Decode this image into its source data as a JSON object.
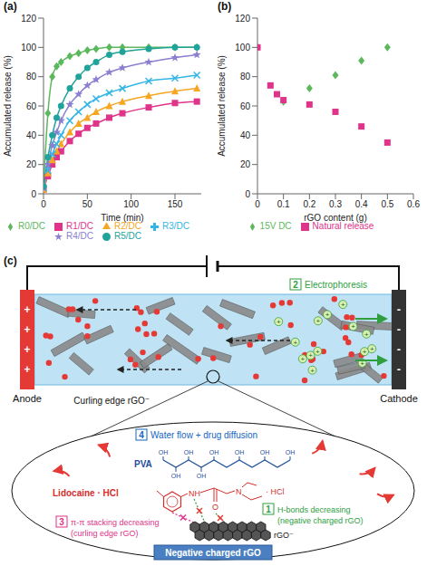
{
  "chart_data": [
    {
      "type": "line",
      "panel": "(a)",
      "x_label": "Time (min)",
      "y_label": "Accumulated release (%)",
      "x": [
        0,
        5,
        10,
        15,
        20,
        30,
        40,
        50,
        60,
        75,
        90,
        120,
        150,
        175
      ],
      "xlim": [
        0,
        180
      ],
      "xticks": [
        0,
        50,
        100,
        150
      ],
      "ylim": [
        0,
        120
      ],
      "yticks": [
        0,
        20,
        40,
        60,
        80,
        100,
        120
      ],
      "grid": false,
      "legend": "bottom",
      "series": [
        {
          "name": "R0/DC",
          "color": "#5cb85c",
          "marker": "diamond",
          "values": [
            5,
            55,
            80,
            87,
            90,
            94,
            96,
            98,
            99,
            100,
            100,
            100,
            100,
            100
          ]
        },
        {
          "name": "R1/DC",
          "color": "#e0338a",
          "marker": "square",
          "values": [
            3,
            12,
            20,
            25,
            29,
            36,
            41,
            45,
            48,
            52,
            55,
            59,
            62,
            63
          ]
        },
        {
          "name": "R2/DC",
          "color": "#f5a623",
          "marker": "triangle",
          "values": [
            3,
            14,
            23,
            29,
            34,
            42,
            48,
            52,
            56,
            60,
            63,
            67,
            70,
            72
          ]
        },
        {
          "name": "R3/DC",
          "color": "#33b5e5",
          "marker": "x",
          "values": [
            4,
            16,
            27,
            34,
            40,
            50,
            56,
            61,
            65,
            69,
            72,
            77,
            79,
            81
          ]
        },
        {
          "name": "R4/DC",
          "color": "#8a7fd0",
          "marker": "star",
          "values": [
            4,
            20,
            33,
            42,
            50,
            61,
            68,
            74,
            78,
            83,
            86,
            90,
            93,
            95
          ]
        },
        {
          "name": "R5/DC",
          "color": "#20a39a",
          "marker": "circle",
          "values": [
            5,
            25,
            40,
            52,
            60,
            72,
            80,
            86,
            90,
            95,
            97,
            99,
            100,
            100
          ]
        }
      ]
    },
    {
      "type": "scatter",
      "panel": "(b)",
      "x_label": "rGO content (g)",
      "y_label": "Accumulated release (%)",
      "xlim": [
        0,
        0.6
      ],
      "xticks": [
        0,
        0.1,
        0.2,
        0.3,
        0.4,
        0.5,
        0.6
      ],
      "ylim": [
        0,
        120
      ],
      "yticks": [
        0,
        20,
        40,
        60,
        80,
        100,
        120
      ],
      "grid": false,
      "legend": "bottom",
      "series": [
        {
          "name": "15V DC",
          "color": "#5cb85c",
          "marker": "diamond",
          "x": [
            0,
            0.1,
            0.2,
            0.3,
            0.4,
            0.5
          ],
          "values": [
            100,
            63,
            72,
            81,
            91,
            100
          ]
        },
        {
          "name": "Natural release",
          "color": "#e0338a",
          "marker": "square",
          "x": [
            0,
            0.05,
            0.075,
            0.1,
            0.2,
            0.3,
            0.4,
            0.5
          ],
          "values": [
            100,
            74,
            68,
            64,
            61,
            56,
            46,
            35
          ]
        }
      ]
    }
  ],
  "diagram": {
    "panel": "(c)",
    "anode": "Anode",
    "cathode": "Cathode",
    "anode_sign": "+",
    "cathode_sign": "-",
    "ion_sign": "+",
    "curling_label": "Curling edge rGO⁻",
    "electrophoresis": {
      "number": "2",
      "text": "Electrophoresis"
    },
    "water_flow": {
      "number": "4",
      "text": "Water flow + drug diffusion"
    },
    "pva": {
      "name": "PVA",
      "group": "OH"
    },
    "lidocaine": {
      "name": "Lidocaine · HCl",
      "atoms": [
        "NH",
        "O",
        "N"
      ],
      "salt": "· HCl"
    },
    "pi_stacking": {
      "number": "3",
      "lines": [
        "π-π stacking decreasing",
        "(curling edge rGO)"
      ]
    },
    "h_bonds": {
      "number": "1",
      "lines": [
        "H-bonds decreasing",
        "(negative charged rGO)"
      ]
    },
    "rgo": {
      "name": "rGO⁻",
      "box": "Negative charged rGO"
    }
  }
}
